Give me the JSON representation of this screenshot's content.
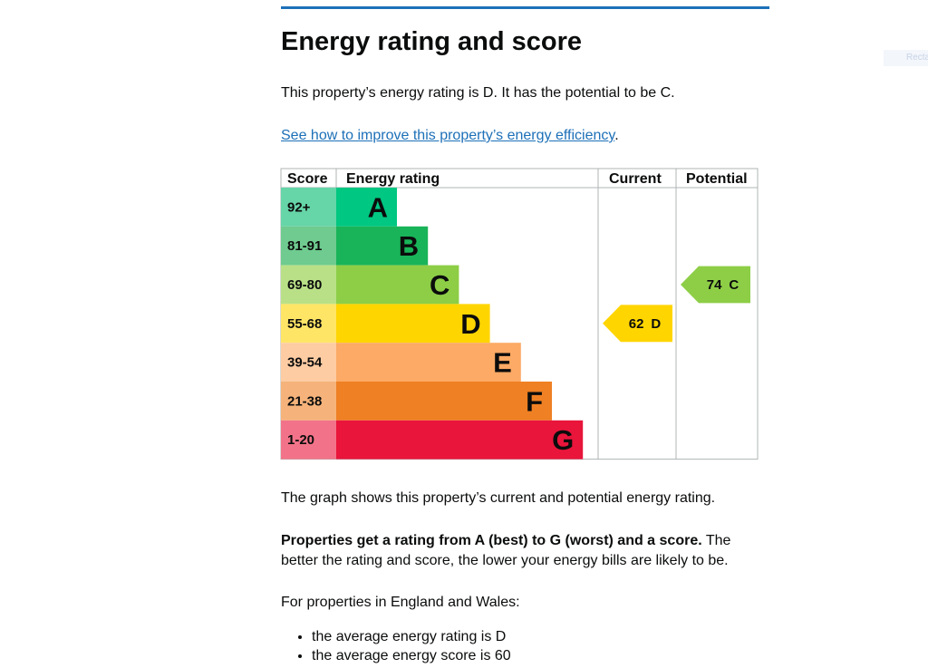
{
  "heading": "Energy rating and score",
  "rating_sentence": "This property’s energy rating is D. It has the potential to be C.",
  "link": {
    "text": "See how to improve this property’s energy efficiency",
    "suffix": "."
  },
  "table": {
    "headers": [
      "Score",
      "Energy rating",
      "Current",
      "Potential"
    ],
    "bands": [
      {
        "score": "92+",
        "letter": "A",
        "bar_color": "#00c781",
        "score_color": "#66d5a8"
      },
      {
        "score": "81-91",
        "letter": "B",
        "bar_color": "#19b459",
        "score_color": "#6fcb8f"
      },
      {
        "score": "69-80",
        "letter": "C",
        "bar_color": "#8dce46",
        "score_color": "#b9e087"
      },
      {
        "score": "55-68",
        "letter": "D",
        "bar_color": "#ffd500",
        "score_color": "#ffe566"
      },
      {
        "score": "39-54",
        "letter": "E",
        "bar_color": "#fcaa65",
        "score_color": "#fdcca3"
      },
      {
        "score": "21-38",
        "letter": "F",
        "bar_color": "#ef8023",
        "score_color": "#f5b37b"
      },
      {
        "score": "1-20",
        "letter": "G",
        "bar_color": "#e9153b",
        "score_color": "#f27389"
      }
    ],
    "current": {
      "score": 62,
      "letter": "D"
    },
    "potential": {
      "score": 74,
      "letter": "C"
    }
  },
  "graph_note": "The graph shows this property’s current and potential energy rating.",
  "explanation": {
    "bold": "Properties get a rating from A (best) to G (worst) and a score.",
    "rest": " The better the rating and score, the lower your energy bills are likely to be."
  },
  "average_intro": "For properties in England and Wales:",
  "average_items": [
    "the average energy rating is D",
    "the average energy score is 60"
  ],
  "side_tab": "Recta"
}
